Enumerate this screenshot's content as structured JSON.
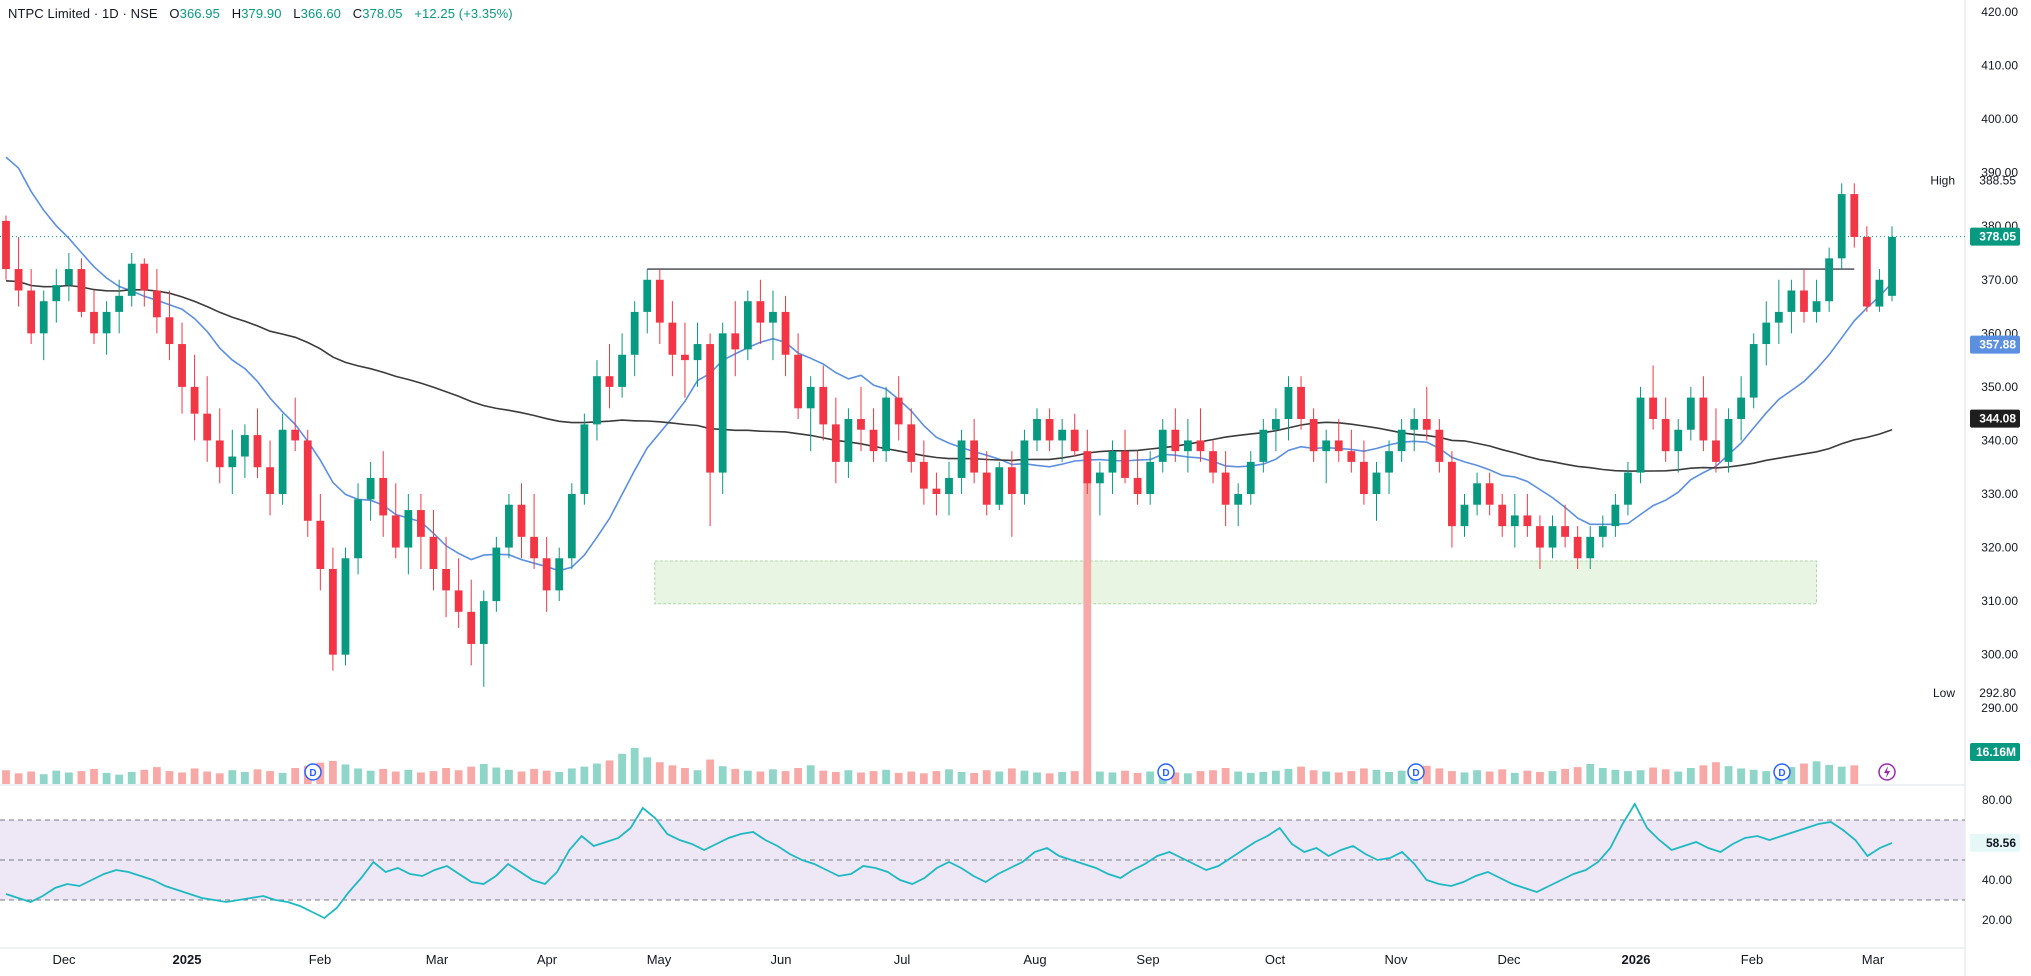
{
  "header": {
    "symbol": "NTPC Limited · 1D · NSE",
    "open_label": "O",
    "open": "366.95",
    "high_label": "H",
    "high": "379.90",
    "low_label": "L",
    "low": "366.60",
    "close_label": "C",
    "close": "378.05",
    "change": "+12.25 (+3.35%)"
  },
  "colors": {
    "up": "#089981",
    "down": "#F23645",
    "sma_fast": "#5B8FE0",
    "sma_slow": "#3B3B3B",
    "rsi": "#1FB9C3",
    "rsi_band": "#EDE7F6",
    "zone": "#E8F5E3",
    "price_tag": "#089981"
  },
  "chart_data": [
    {
      "type": "candlestick",
      "title": "NTPC Limited · 1D · NSE",
      "ylim": [
        285,
        420
      ],
      "y_ticks": [
        "420.00",
        "410.00",
        "400.00",
        "390.00",
        "380.00",
        "370.00",
        "360.00",
        "350.00",
        "340.00",
        "330.00",
        "320.00",
        "310.00",
        "300.00",
        "290.00"
      ],
      "x_labels": [
        "Dec",
        "2025",
        "Feb",
        "Mar",
        "Apr",
        "May",
        "Jun",
        "Jul",
        "Aug",
        "Sep",
        "Oct",
        "Nov",
        "Dec",
        "2026",
        "Feb",
        "Mar"
      ],
      "high_marker": {
        "label": "High",
        "value": "388.55"
      },
      "low_marker": {
        "label": "Low",
        "value": "292.80"
      },
      "last_price": "378.05",
      "sma_fast_last": "357.88",
      "sma_slow_last": "344.08",
      "resistance": 372.0,
      "support_zone": [
        309.5,
        317.5
      ],
      "candles": [
        [
          381,
          382,
          370,
          372
        ],
        [
          372,
          378,
          365,
          368
        ],
        [
          368,
          372,
          358,
          360
        ],
        [
          360,
          368,
          355,
          366
        ],
        [
          366,
          372,
          362,
          369
        ],
        [
          369,
          375,
          366,
          372
        ],
        [
          372,
          374,
          363,
          364
        ],
        [
          364,
          368,
          358,
          360
        ],
        [
          360,
          366,
          356,
          364
        ],
        [
          364,
          370,
          360,
          367
        ],
        [
          367,
          375,
          365,
          373
        ],
        [
          373,
          374,
          365,
          368
        ],
        [
          368,
          372,
          360,
          363
        ],
        [
          363,
          368,
          355,
          358
        ],
        [
          358,
          362,
          345,
          350
        ],
        [
          350,
          356,
          340,
          345
        ],
        [
          345,
          352,
          336,
          340
        ],
        [
          340,
          346,
          332,
          335
        ],
        [
          335,
          342,
          330,
          337
        ],
        [
          337,
          343,
          333,
          341
        ],
        [
          341,
          346,
          333,
          335
        ],
        [
          335,
          340,
          326,
          330
        ],
        [
          330,
          345,
          328,
          342
        ],
        [
          342,
          348,
          338,
          340
        ],
        [
          340,
          342,
          322,
          325
        ],
        [
          325,
          330,
          312,
          316
        ],
        [
          316,
          320,
          297,
          300
        ],
        [
          300,
          320,
          298,
          318
        ],
        [
          318,
          332,
          315,
          329
        ],
        [
          329,
          336,
          325,
          333
        ],
        [
          333,
          338,
          322,
          326
        ],
        [
          326,
          332,
          318,
          320
        ],
        [
          320,
          330,
          315,
          327
        ],
        [
          327,
          330,
          316,
          322
        ],
        [
          322,
          327,
          312,
          316
        ],
        [
          316,
          322,
          307,
          312
        ],
        [
          312,
          318,
          305,
          308
        ],
        [
          308,
          314,
          298,
          302
        ],
        [
          302,
          312,
          294,
          310
        ],
        [
          310,
          322,
          308,
          320
        ],
        [
          320,
          330,
          318,
          328
        ],
        [
          328,
          332,
          318,
          322
        ],
        [
          322,
          330,
          316,
          318
        ],
        [
          318,
          322,
          308,
          312
        ],
        [
          312,
          320,
          310,
          318
        ],
        [
          318,
          332,
          316,
          330
        ],
        [
          330,
          345,
          328,
          343
        ],
        [
          343,
          355,
          340,
          352
        ],
        [
          352,
          358,
          346,
          350
        ],
        [
          350,
          360,
          348,
          356
        ],
        [
          356,
          366,
          352,
          364
        ],
        [
          364,
          372,
          360,
          370
        ],
        [
          370,
          372,
          358,
          362
        ],
        [
          362,
          366,
          352,
          356
        ],
        [
          356,
          362,
          348,
          355
        ],
        [
          355,
          362,
          350,
          358
        ],
        [
          358,
          360,
          324,
          334
        ],
        [
          334,
          362,
          330,
          360
        ],
        [
          360,
          366,
          352,
          357
        ],
        [
          357,
          368,
          355,
          366
        ],
        [
          366,
          370,
          358,
          362
        ],
        [
          362,
          368,
          355,
          364
        ],
        [
          364,
          367,
          352,
          356
        ],
        [
          356,
          360,
          344,
          346
        ],
        [
          346,
          352,
          338,
          350
        ],
        [
          350,
          354,
          340,
          343
        ],
        [
          343,
          348,
          332,
          336
        ],
        [
          336,
          346,
          333,
          344
        ],
        [
          344,
          350,
          338,
          342
        ],
        [
          342,
          346,
          336,
          338
        ],
        [
          338,
          350,
          336,
          348
        ],
        [
          348,
          352,
          340,
          343
        ],
        [
          343,
          346,
          334,
          336
        ],
        [
          336,
          340,
          328,
          331
        ],
        [
          331,
          334,
          326,
          330
        ],
        [
          330,
          336,
          326,
          333
        ],
        [
          333,
          342,
          330,
          340
        ],
        [
          340,
          344,
          332,
          334
        ],
        [
          334,
          338,
          326,
          328
        ],
        [
          328,
          336,
          327,
          335
        ],
        [
          335,
          338,
          322,
          330
        ],
        [
          330,
          342,
          328,
          340
        ],
        [
          340,
          346,
          338,
          344
        ],
        [
          344,
          346,
          338,
          340
        ],
        [
          340,
          344,
          336,
          342
        ],
        [
          342,
          345,
          337,
          338
        ],
        [
          338,
          342,
          330,
          332
        ],
        [
          332,
          336,
          326,
          334
        ],
        [
          334,
          340,
          330,
          338
        ],
        [
          338,
          342,
          332,
          333
        ],
        [
          333,
          338,
          328,
          330
        ],
        [
          330,
          338,
          328,
          336
        ],
        [
          336,
          344,
          334,
          342
        ],
        [
          342,
          346,
          336,
          338
        ],
        [
          338,
          344,
          334,
          340
        ],
        [
          340,
          346,
          336,
          338
        ],
        [
          338,
          340,
          332,
          334
        ],
        [
          334,
          338,
          324,
          328
        ],
        [
          328,
          332,
          324,
          330
        ],
        [
          330,
          338,
          328,
          336
        ],
        [
          336,
          344,
          334,
          342
        ],
        [
          342,
          346,
          338,
          344
        ],
        [
          344,
          352,
          340,
          350
        ],
        [
          350,
          352,
          342,
          344
        ],
        [
          344,
          346,
          336,
          338
        ],
        [
          338,
          342,
          332,
          340
        ],
        [
          340,
          344,
          336,
          338
        ],
        [
          338,
          342,
          334,
          336
        ],
        [
          336,
          340,
          328,
          330
        ],
        [
          330,
          336,
          325,
          334
        ],
        [
          334,
          340,
          330,
          338
        ],
        [
          338,
          344,
          336,
          342
        ],
        [
          342,
          346,
          338,
          344
        ],
        [
          344,
          350,
          340,
          342
        ],
        [
          342,
          344,
          334,
          336
        ],
        [
          336,
          338,
          320,
          324
        ],
        [
          324,
          330,
          322,
          328
        ],
        [
          328,
          334,
          326,
          332
        ],
        [
          332,
          334,
          326,
          328
        ],
        [
          328,
          330,
          322,
          324
        ],
        [
          324,
          330,
          320,
          326
        ],
        [
          326,
          330,
          322,
          324
        ],
        [
          324,
          326,
          316,
          320
        ],
        [
          320,
          326,
          318,
          324
        ],
        [
          324,
          328,
          320,
          322
        ],
        [
          322,
          324,
          316,
          318
        ],
        [
          318,
          324,
          316,
          322
        ],
        [
          322,
          326,
          320,
          324
        ],
        [
          324,
          330,
          322,
          328
        ],
        [
          328,
          336,
          326,
          334
        ],
        [
          334,
          350,
          332,
          348
        ],
        [
          348,
          354,
          342,
          344
        ],
        [
          344,
          348,
          336,
          338
        ],
        [
          338,
          344,
          334,
          342
        ],
        [
          342,
          350,
          340,
          348
        ],
        [
          348,
          352,
          338,
          340
        ],
        [
          340,
          346,
          334,
          336
        ],
        [
          336,
          346,
          334,
          344
        ],
        [
          344,
          352,
          340,
          348
        ],
        [
          348,
          360,
          346,
          358
        ],
        [
          358,
          366,
          354,
          362
        ],
        [
          362,
          370,
          358,
          364
        ],
        [
          364,
          370,
          360,
          368
        ],
        [
          368,
          372,
          362,
          364
        ],
        [
          364,
          370,
          362,
          366
        ],
        [
          366,
          376,
          364,
          374
        ],
        [
          374,
          388,
          372,
          386
        ],
        [
          386,
          388,
          376,
          378
        ],
        [
          378,
          380,
          364,
          365
        ],
        [
          365,
          372,
          364,
          370
        ],
        [
          367,
          380,
          366,
          378
        ]
      ],
      "volume_label": "16.16M",
      "volume_ylim": [
        0,
        18
      ],
      "volume": [
        3.1,
        2.4,
        2.8,
        2.2,
        3.0,
        2.6,
        2.9,
        3.4,
        2.5,
        2.1,
        2.7,
        3.2,
        3.8,
        2.9,
        2.6,
        3.5,
        2.8,
        2.4,
        3.1,
        2.7,
        3.3,
        2.9,
        2.5,
        3.6,
        4.1,
        4.8,
        5.2,
        4.4,
        3.5,
        3.0,
        3.4,
        2.8,
        3.2,
        2.6,
        2.9,
        3.6,
        3.1,
        3.9,
        4.5,
        3.7,
        3.2,
        2.8,
        3.4,
        3.0,
        2.7,
        3.5,
        3.9,
        4.6,
        5.3,
        6.8,
        8.1,
        6.0,
        4.9,
        4.2,
        3.6,
        3.1,
        5.5,
        4.0,
        3.4,
        3.0,
        2.8,
        3.3,
        2.9,
        3.6,
        4.2,
        3.0,
        2.7,
        3.1,
        2.6,
        2.9,
        3.2,
        2.5,
        2.8,
        2.4,
        2.9,
        3.3,
        2.7,
        2.5,
        3.1,
        2.8,
        3.5,
        3.0,
        2.6,
        2.4,
        2.7,
        2.9,
        3.2,
        2.8,
        2.6,
        3.0,
        2.5,
        2.8,
        3.3,
        2.6,
        2.4,
        2.9,
        3.1,
        3.6,
        2.8,
        2.5,
        2.7,
        3.0,
        3.4,
        3.9,
        3.1,
        2.8,
        2.6,
        2.9,
        3.5,
        3.2,
        2.7,
        3.0,
        3.8,
        4.1,
        3.5,
        2.9,
        2.6,
        3.1,
        2.8,
        3.3,
        2.5,
        3.0,
        2.7,
        2.9,
        3.4,
        3.8,
        4.5,
        3.6,
        3.2,
        2.9,
        3.1,
        3.7,
        3.3,
        2.8,
        3.6,
        4.2,
        4.9,
        4.0,
        3.5,
        3.2,
        2.9,
        3.4,
        3.8,
        4.6,
        5.1,
        4.3,
        3.9,
        4.2
      ],
      "volume_spike": 16.16,
      "rsi_label": "58.56",
      "rsi_ylim": [
        10,
        85
      ],
      "rsi_ticks": [
        "80.00",
        "40.00",
        "20.00"
      ],
      "rsi_bands": [
        30,
        50,
        70
      ],
      "rsi": [
        33,
        31,
        29,
        32,
        36,
        38,
        37,
        40,
        43,
        45,
        44,
        42,
        40,
        37,
        35,
        33,
        31,
        30,
        29,
        30,
        31,
        32,
        30,
        29,
        27,
        24,
        21,
        26,
        34,
        41,
        49,
        44,
        46,
        43,
        42,
        45,
        47,
        43,
        39,
        38,
        42,
        48,
        44,
        40,
        38,
        44,
        55,
        62,
        57,
        59,
        61,
        66,
        76,
        71,
        63,
        60,
        58,
        55,
        58,
        61,
        63,
        64,
        60,
        57,
        53,
        50,
        48,
        45,
        42,
        43,
        47,
        46,
        44,
        40,
        38,
        41,
        46,
        49,
        46,
        42,
        39,
        43,
        46,
        49,
        54,
        56,
        52,
        50,
        48,
        46,
        43,
        41,
        45,
        48,
        52,
        54,
        51,
        48,
        45,
        47,
        51,
        55,
        59,
        62,
        66,
        58,
        54,
        56,
        52,
        55,
        57,
        53,
        50,
        51,
        54,
        48,
        40,
        38,
        37,
        39,
        42,
        44,
        41,
        38,
        36,
        34,
        37,
        40,
        43,
        45,
        49,
        56,
        68,
        78,
        66,
        60,
        55,
        57,
        59,
        56,
        54,
        58,
        61,
        62,
        60,
        62,
        64,
        66,
        68,
        69,
        65,
        60,
        52,
        56,
        58.56
      ]
    }
  ]
}
